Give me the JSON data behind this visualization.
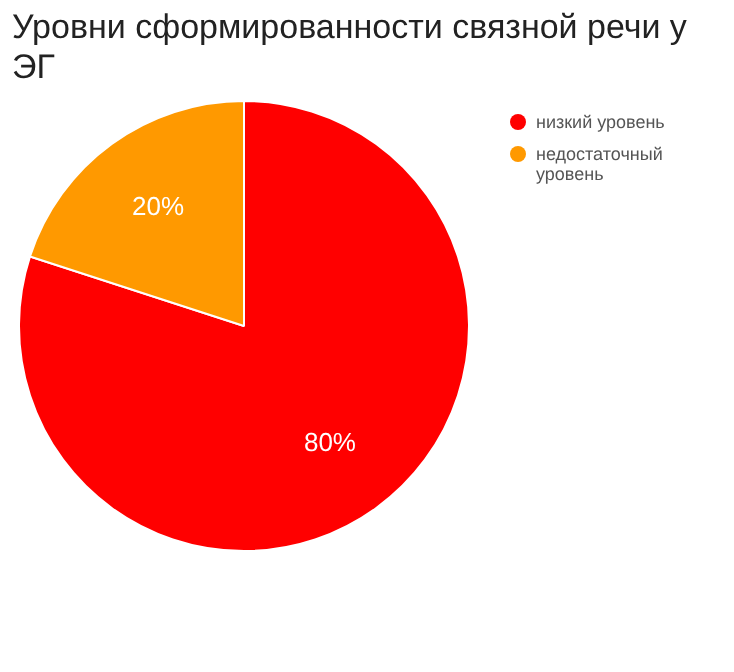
{
  "chart_data": {
    "type": "pie",
    "title": "Уровни сформированности связной речи у ЭГ",
    "categories": [
      "низкий уровень",
      "недостаточный уровень"
    ],
    "values": [
      80,
      20
    ],
    "colors": [
      "#ff0000",
      "#ff9900"
    ],
    "value_labels": [
      "80%",
      "20%"
    ],
    "legend": "top right"
  }
}
